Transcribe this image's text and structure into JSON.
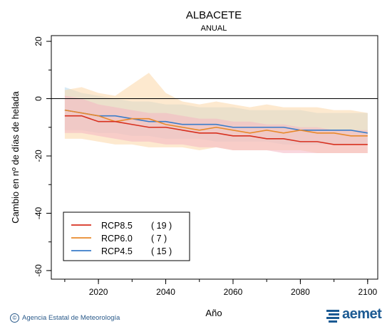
{
  "chart_data": {
    "type": "line",
    "title": "ALBACETE",
    "subtitle": "ANUAL",
    "xlabel": "Año",
    "ylabel": "Cambio en nº de días de helada",
    "xlim": [
      2006,
      2103
    ],
    "ylim": [
      -63,
      22
    ],
    "xticks": [
      2020,
      2040,
      2060,
      2080,
      2100
    ],
    "yticks": [
      20,
      0,
      -20,
      -40,
      -60
    ],
    "grid": false,
    "legend_position": "bottom-left",
    "series": [
      {
        "name": "RCP8.5",
        "count": "( 19 )",
        "color": "#d7301f",
        "band_color": "#f4b6c2",
        "x": [
          2010,
          2015,
          2020,
          2025,
          2030,
          2035,
          2040,
          2045,
          2050,
          2055,
          2060,
          2065,
          2070,
          2075,
          2080,
          2085,
          2090,
          2095,
          2100
        ],
        "values": [
          -6,
          -6,
          -8,
          -8,
          -9,
          -10,
          -10,
          -11,
          -12,
          -12,
          -13,
          -13,
          -14,
          -14,
          -15,
          -15,
          -16,
          -16,
          -16
        ],
        "band_low": [
          -12,
          -12,
          -13,
          -14,
          -15,
          -15,
          -16,
          -16,
          -17,
          -17,
          -18,
          -18,
          -18,
          -19,
          -19,
          -19,
          -19,
          -19,
          -19
        ],
        "band_high": [
          1,
          0,
          -2,
          -3,
          -4,
          -5,
          -5,
          -6,
          -7,
          -7,
          -8,
          -8,
          -9,
          -9,
          -10,
          -10,
          -11,
          -11,
          -11
        ]
      },
      {
        "name": "RCP6.0",
        "count": "(  7 )",
        "color": "#e8892b",
        "band_color": "#fbd7a7",
        "x": [
          2010,
          2015,
          2020,
          2025,
          2030,
          2035,
          2040,
          2045,
          2050,
          2055,
          2060,
          2065,
          2070,
          2075,
          2080,
          2085,
          2090,
          2095,
          2100
        ],
        "values": [
          -4,
          -5,
          -6,
          -8,
          -7,
          -7,
          -9,
          -10,
          -11,
          -10,
          -11,
          -12,
          -11,
          -12,
          -11,
          -12,
          -12,
          -13,
          -13
        ],
        "band_low": [
          -14,
          -14,
          -15,
          -16,
          -16,
          -17,
          -17,
          -17,
          -18,
          -17,
          -18,
          -18,
          -18,
          -18,
          -18,
          -19,
          -19,
          -19,
          -19
        ],
        "band_high": [
          3,
          4,
          2,
          1,
          5,
          9,
          2,
          -1,
          -2,
          -1,
          -2,
          -3,
          -2,
          -3,
          -3,
          -3,
          -4,
          -4,
          -5
        ]
      },
      {
        "name": "RCP4.5",
        "count": "( 15 )",
        "color": "#3a7cc9",
        "band_color": "#b6d8ec",
        "x": [
          2010,
          2015,
          2020,
          2025,
          2030,
          2035,
          2040,
          2045,
          2050,
          2055,
          2060,
          2065,
          2070,
          2075,
          2080,
          2085,
          2090,
          2095,
          2100
        ],
        "values": [
          -4,
          -5,
          -6,
          -6,
          -7,
          -8,
          -8,
          -9,
          -9,
          -9,
          -10,
          -10,
          -10,
          -10,
          -11,
          -11,
          -11,
          -11,
          -12
        ],
        "band_low": [
          -11,
          -11,
          -12,
          -12,
          -13,
          -13,
          -14,
          -14,
          -14,
          -15,
          -15,
          -15,
          -15,
          -16,
          -16,
          -16,
          -16,
          -16,
          -16
        ],
        "band_high": [
          4,
          2,
          1,
          0,
          -1,
          -1,
          -2,
          -2,
          -3,
          -3,
          -3,
          -4,
          -4,
          -4,
          -4,
          -5,
          -5,
          -5,
          -5
        ]
      }
    ]
  },
  "footer": {
    "credit": "Agencia Estatal de Meteorología",
    "logo": "aemet",
    "copyright_symbol": "©"
  }
}
